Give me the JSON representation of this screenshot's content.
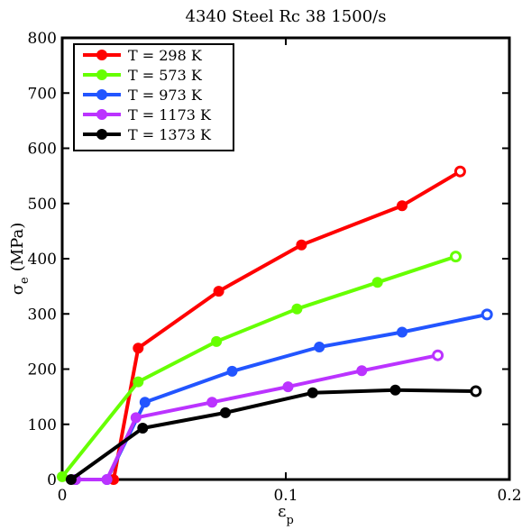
{
  "chart_data": {
    "type": "line",
    "title": "4340 Steel Rc 38 1500/s",
    "xlabel": "ε",
    "xlabel_sub": "p",
    "ylabel": "σ",
    "ylabel_sub": "e",
    "ylabel_unit": "(MPa)",
    "xlim": [
      0,
      0.2
    ],
    "ylim": [
      0,
      800
    ],
    "xticks": [
      0,
      0.1,
      0.2
    ],
    "xtick_labels": [
      "0",
      "0.1",
      "0.2"
    ],
    "yticks": [
      0,
      100,
      200,
      300,
      400,
      500,
      600,
      700,
      800
    ],
    "ytick_labels": [
      "0",
      "100",
      "200",
      "300",
      "400",
      "500",
      "600",
      "700",
      "800"
    ],
    "grid": false,
    "legend_position": "top-left",
    "series": [
      {
        "name": "T = 298 K",
        "color": "#ff0000",
        "x": [
          0.006,
          0.023,
          0.034,
          0.07,
          0.107,
          0.152,
          0.178
        ],
        "y": [
          0,
          0,
          238,
          341,
          425,
          496,
          558
        ]
      },
      {
        "name": "T = 573 K",
        "color": "#66ff00",
        "x": [
          0.0,
          0.034,
          0.069,
          0.105,
          0.141,
          0.176
        ],
        "y": [
          5,
          177,
          250,
          309,
          357,
          404
        ]
      },
      {
        "name": "T = 973 K",
        "color": "#2255ff",
        "x": [
          0.006,
          0.02,
          0.037,
          0.076,
          0.115,
          0.152,
          0.19
        ],
        "y": [
          0,
          0,
          140,
          196,
          240,
          267,
          299
        ]
      },
      {
        "name": "T = 1173 K",
        "color": "#bb33ff",
        "x": [
          0.006,
          0.02,
          0.033,
          0.067,
          0.101,
          0.134,
          0.168
        ],
        "y": [
          0,
          0,
          112,
          140,
          168,
          197,
          225
        ]
      },
      {
        "name": "T = 1373 K",
        "color": "#000000",
        "x": [
          0.004,
          0.036,
          0.073,
          0.112,
          0.149,
          0.185
        ],
        "y": [
          0,
          93,
          121,
          157,
          162,
          160
        ]
      }
    ]
  }
}
